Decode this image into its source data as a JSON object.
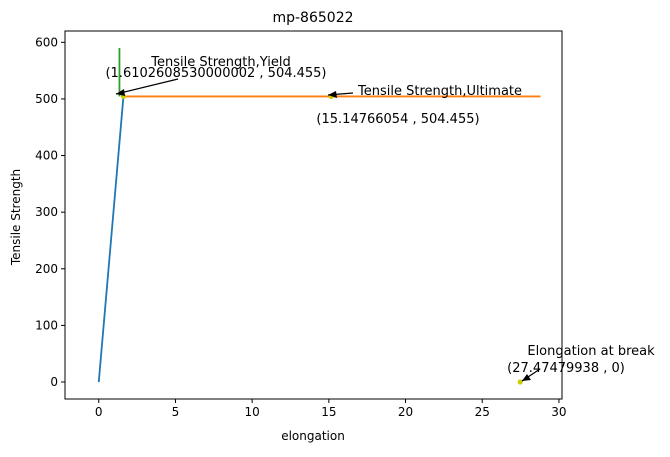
{
  "chart_data": {
    "type": "line",
    "title": "mp-865022",
    "xlabel": "elongation",
    "ylabel": "Tensile Strength",
    "xlim": [
      -2.2,
      30.2
    ],
    "ylim": [
      -30,
      620
    ],
    "xticks": [
      0,
      5,
      10,
      15,
      20,
      25,
      30
    ],
    "yticks": [
      0,
      100,
      200,
      300,
      400,
      500,
      600
    ],
    "grid": false,
    "series": [
      {
        "color": "#1f77b4",
        "points": [
          [
            0,
            0
          ],
          [
            1.61,
            504.455
          ]
        ]
      },
      {
        "color": "#ff7f0e",
        "points": [
          [
            1.61,
            504.455
          ],
          [
            28.8,
            504.455
          ]
        ]
      },
      {
        "color": "#2ca02c",
        "points": [
          [
            1.35,
            504.455
          ],
          [
            1.35,
            590
          ]
        ]
      }
    ],
    "points": [
      {
        "x": 1.6102608530000002,
        "y": 504.455,
        "color": "#cccc00"
      },
      {
        "x": 15.14766054,
        "y": 504.455,
        "color": "#cccc00"
      },
      {
        "x": 27.47479938,
        "y": 0,
        "color": "#cccc00"
      }
    ],
    "annotations": [
      {
        "title": "Tensile Strength,Yield",
        "coords": "(1.6102608530000002 , 504.455)"
      },
      {
        "title": "Tensile Strength,Ultimate",
        "coords": "(15.14766054 , 504.455)"
      },
      {
        "title": "Elongation at break",
        "coords": "(27.47479938 , 0)"
      }
    ]
  }
}
